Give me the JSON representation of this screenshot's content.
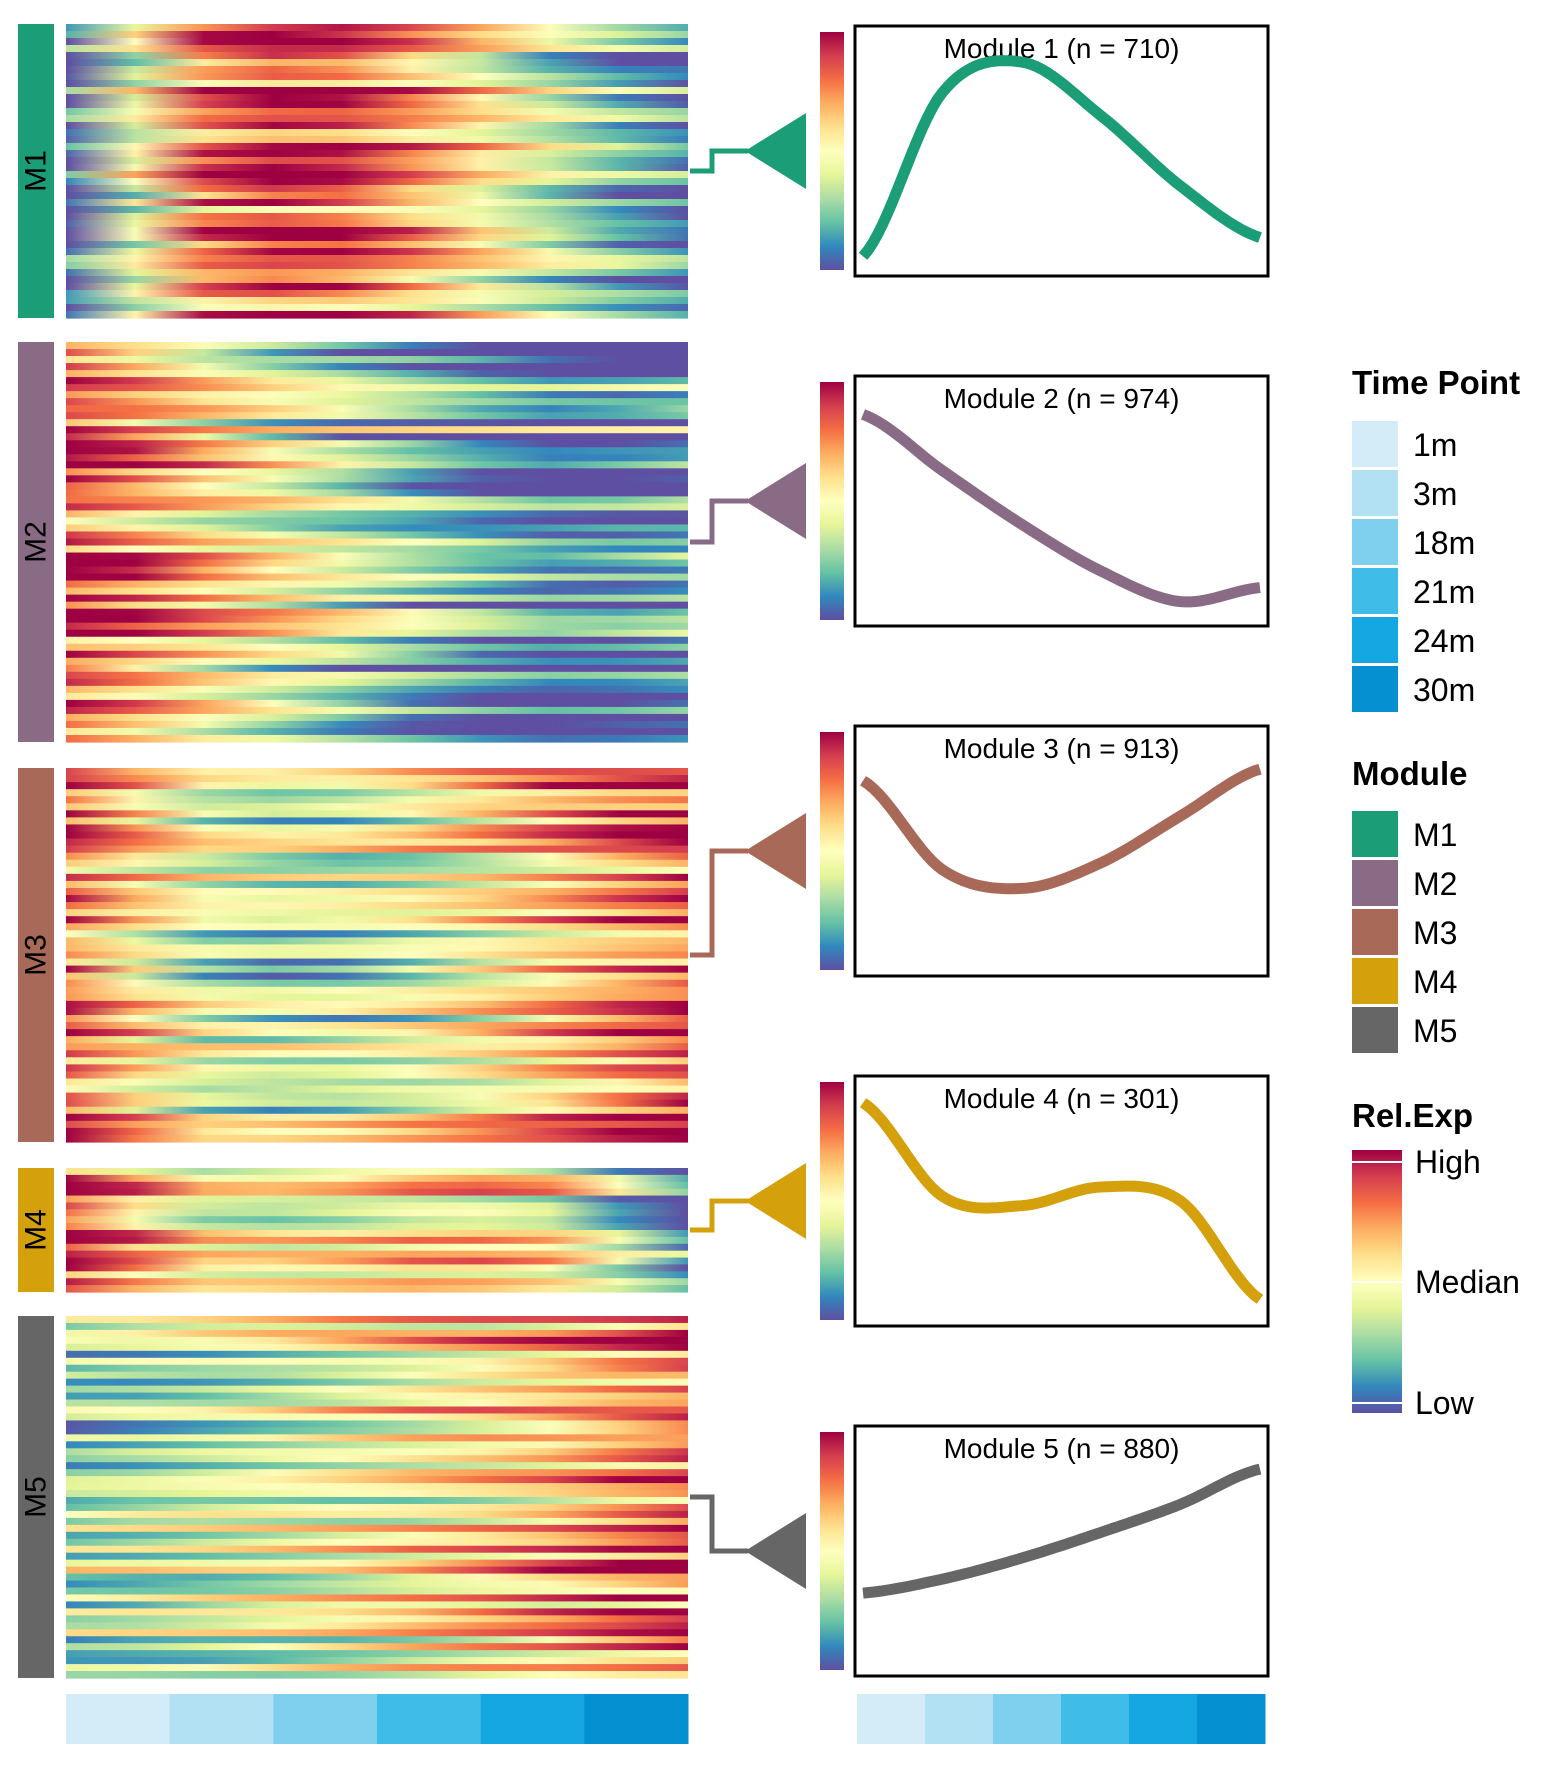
{
  "timepoints": {
    "labels": [
      "1m",
      "3m",
      "18m",
      "21m",
      "24m",
      "30m"
    ],
    "colors": [
      "#d3ecf7",
      "#b3e1f4",
      "#7fd0ef",
      "#3fbde8",
      "#15a7e2",
      "#0590d2"
    ]
  },
  "chart_data": {
    "type": "heatmap",
    "title": "",
    "value_label": "Rel.Exp",
    "value_scale": {
      "labels": [
        "High",
        "Median",
        "Low"
      ],
      "colors": [
        "#9e0142",
        "#d53e4f",
        "#f46d43",
        "#fdae61",
        "#fee08b",
        "#ffffbf",
        "#e6f598",
        "#abdda4",
        "#66c2a5",
        "#3288bd",
        "#5e4fa2"
      ]
    },
    "modules": [
      {
        "id": "M1",
        "color": "#1b9e77",
        "n": 710,
        "title": "Module 1 (n = 710)",
        "trend": [
          {
            "t": 0,
            "v": 0.05
          },
          {
            "t": 0.2,
            "v": 0.75
          },
          {
            "t": 0.4,
            "v": 0.88
          },
          {
            "t": 0.6,
            "v": 0.65
          },
          {
            "t": 0.8,
            "v": 0.35
          },
          {
            "t": 1,
            "v": 0.13
          }
        ]
      },
      {
        "id": "M2",
        "color": "#8a6b86",
        "n": 974,
        "title": "Module 2 (n = 974)",
        "trend": [
          {
            "t": 0,
            "v": 0.87
          },
          {
            "t": 0.2,
            "v": 0.63
          },
          {
            "t": 0.4,
            "v": 0.4
          },
          {
            "t": 0.6,
            "v": 0.2
          },
          {
            "t": 0.8,
            "v": 0.07
          },
          {
            "t": 1,
            "v": 0.13
          }
        ]
      },
      {
        "id": "M3",
        "color": "#a86959",
        "n": 913,
        "title": "Module 3 (n = 913)",
        "trend": [
          {
            "t": 0,
            "v": 0.8
          },
          {
            "t": 0.2,
            "v": 0.42
          },
          {
            "t": 0.4,
            "v": 0.34
          },
          {
            "t": 0.6,
            "v": 0.45
          },
          {
            "t": 0.8,
            "v": 0.65
          },
          {
            "t": 1,
            "v": 0.85
          }
        ]
      },
      {
        "id": "M4",
        "color": "#d4a00b",
        "n": 301,
        "title": "Module 4 (n = 301)",
        "trend": [
          {
            "t": 0,
            "v": 0.92
          },
          {
            "t": 0.2,
            "v": 0.52
          },
          {
            "t": 0.4,
            "v": 0.48
          },
          {
            "t": 0.6,
            "v": 0.56
          },
          {
            "t": 0.8,
            "v": 0.5
          },
          {
            "t": 1,
            "v": 0.08
          }
        ]
      },
      {
        "id": "M5",
        "color": "#666666",
        "n": 880,
        "title": "Module 5 (n = 880)",
        "trend": [
          {
            "t": 0,
            "v": 0.32
          },
          {
            "t": 0.2,
            "v": 0.38
          },
          {
            "t": 0.4,
            "v": 0.47
          },
          {
            "t": 0.6,
            "v": 0.58
          },
          {
            "t": 0.8,
            "v": 0.7
          },
          {
            "t": 1,
            "v": 0.85
          }
        ]
      }
    ]
  },
  "legend": {
    "timepoint_title": "Time Point",
    "module_title": "Module",
    "relexp_title": "Rel.Exp",
    "high_label": "High",
    "median_label": "Median",
    "low_label": "Low"
  }
}
